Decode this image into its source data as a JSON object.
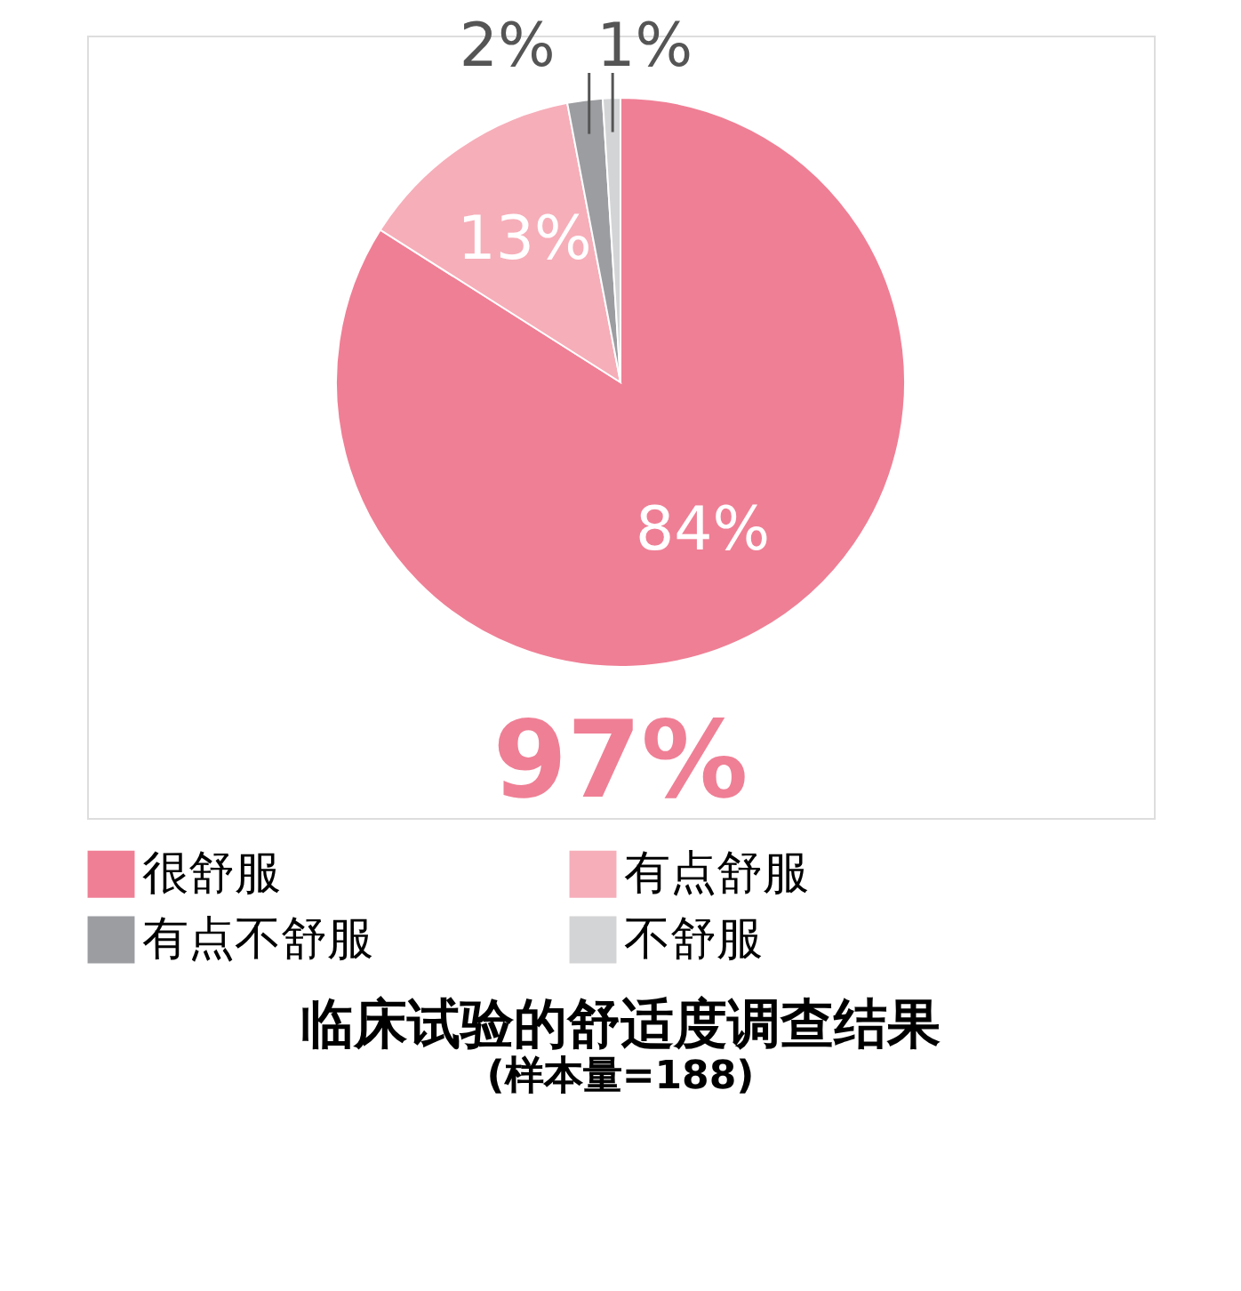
{
  "chart_data": {
    "type": "pie",
    "title": "临床试验的舒适度调查结果",
    "subtitle": "(样本量=188)",
    "categories": [
      "很舒服",
      "有点舒服",
      "有点不舒服",
      "不舒服"
    ],
    "values": [
      84,
      13,
      2,
      1
    ],
    "colors": [
      "#ef7f95",
      "#f6aeb9",
      "#9c9da1",
      "#d3d4d6"
    ],
    "value_labels": [
      "84%",
      "13%",
      "2%",
      "1%"
    ],
    "annotations": [
      "97%"
    ],
    "legend": "bottom"
  }
}
